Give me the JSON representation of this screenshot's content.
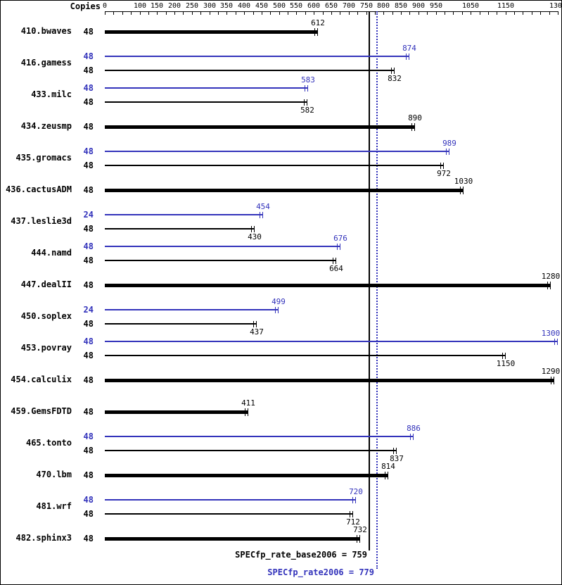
{
  "labels": {
    "copies_header": "Copies"
  },
  "summary": {
    "base_label": "SPECfp_rate_base2006 = 759",
    "peak_label": "SPECfp_rate2006 = 779"
  },
  "chart_data": {
    "type": "bar",
    "orientation": "horizontal",
    "title": "",
    "xlabel": "",
    "ylabel": "",
    "xlim": [
      0,
      1300
    ],
    "axis_tick_labels": [
      0,
      100,
      150,
      200,
      250,
      300,
      350,
      400,
      450,
      500,
      550,
      600,
      650,
      700,
      750,
      800,
      850,
      900,
      950,
      1050,
      1150,
      1300
    ],
    "minor_tick_step": 25,
    "grid": false,
    "legend_position": "none",
    "colors": {
      "peak_blue": "#3333bb",
      "base_black": "#000000"
    },
    "bar_kinds_note": "peak = thin blue bar (SPECfp_rate2006 result), base = thin black bar (SPECfp_rate_base2006 result), single = thick black bar (base and peak equal)",
    "benchmarks": [
      {
        "name": "410.bwaves",
        "bars": [
          {
            "copies": 48,
            "value": 612,
            "kind": "single"
          }
        ]
      },
      {
        "name": "416.gamess",
        "bars": [
          {
            "copies": 48,
            "value": 874,
            "kind": "peak"
          },
          {
            "copies": 48,
            "value": 832,
            "kind": "base"
          }
        ]
      },
      {
        "name": "433.milc",
        "bars": [
          {
            "copies": 48,
            "value": 583,
            "kind": "peak"
          },
          {
            "copies": 48,
            "value": 582,
            "kind": "base"
          }
        ]
      },
      {
        "name": "434.zeusmp",
        "bars": [
          {
            "copies": 48,
            "value": 890,
            "kind": "single"
          }
        ]
      },
      {
        "name": "435.gromacs",
        "bars": [
          {
            "copies": 48,
            "value": 989,
            "kind": "peak"
          },
          {
            "copies": 48,
            "value": 972,
            "kind": "base"
          }
        ]
      },
      {
        "name": "436.cactusADM",
        "bars": [
          {
            "copies": 48,
            "value": 1030,
            "kind": "single"
          }
        ]
      },
      {
        "name": "437.leslie3d",
        "bars": [
          {
            "copies": 24,
            "value": 454,
            "kind": "peak"
          },
          {
            "copies": 48,
            "value": 430,
            "kind": "base"
          }
        ]
      },
      {
        "name": "444.namd",
        "bars": [
          {
            "copies": 48,
            "value": 676,
            "kind": "peak"
          },
          {
            "copies": 48,
            "value": 664,
            "kind": "base"
          }
        ]
      },
      {
        "name": "447.dealII",
        "bars": [
          {
            "copies": 48,
            "value": 1280,
            "kind": "single"
          }
        ]
      },
      {
        "name": "450.soplex",
        "bars": [
          {
            "copies": 24,
            "value": 499,
            "kind": "peak"
          },
          {
            "copies": 48,
            "value": 437,
            "kind": "base"
          }
        ]
      },
      {
        "name": "453.povray",
        "bars": [
          {
            "copies": 48,
            "value": 1300,
            "kind": "peak"
          },
          {
            "copies": 48,
            "value": 1150,
            "kind": "base"
          }
        ]
      },
      {
        "name": "454.calculix",
        "bars": [
          {
            "copies": 48,
            "value": 1290,
            "kind": "single"
          }
        ]
      },
      {
        "name": "459.GemsFDTD",
        "bars": [
          {
            "copies": 48,
            "value": 411,
            "kind": "single"
          }
        ]
      },
      {
        "name": "465.tonto",
        "bars": [
          {
            "copies": 48,
            "value": 886,
            "kind": "peak"
          },
          {
            "copies": 48,
            "value": 837,
            "kind": "base"
          }
        ]
      },
      {
        "name": "470.lbm",
        "bars": [
          {
            "copies": 48,
            "value": 814,
            "kind": "single"
          }
        ]
      },
      {
        "name": "481.wrf",
        "bars": [
          {
            "copies": 48,
            "value": 720,
            "kind": "peak"
          },
          {
            "copies": 48,
            "value": 712,
            "kind": "base"
          }
        ]
      },
      {
        "name": "482.sphinx3",
        "bars": [
          {
            "copies": 48,
            "value": 732,
            "kind": "single"
          }
        ]
      }
    ],
    "reference_lines": [
      {
        "name": "SPECfp_rate_base2006",
        "value": 759,
        "style": "solid",
        "color": "#000000"
      },
      {
        "name": "SPECfp_rate2006",
        "value": 779,
        "style": "dotted",
        "color": "#3333bb"
      }
    ]
  }
}
